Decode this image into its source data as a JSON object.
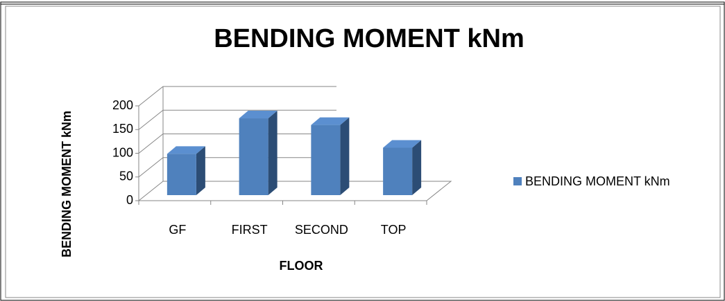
{
  "chart_data": {
    "type": "bar",
    "title": "BENDING MOMENT kNm",
    "x_label": "FLOOR",
    "y_label": "BENDING MOMENT kNm",
    "categories": [
      "GF",
      "FIRST",
      "SECOND",
      "TOP"
    ],
    "series": [
      {
        "name": "BENDING MOMENT kNm",
        "color": "#4f81bd",
        "values": [
          87,
          162,
          148,
          100
        ]
      }
    ],
    "ylim": [
      0,
      200
    ],
    "yticks": [
      0,
      50,
      100,
      150,
      200
    ],
    "grid": true,
    "legend": "right"
  }
}
